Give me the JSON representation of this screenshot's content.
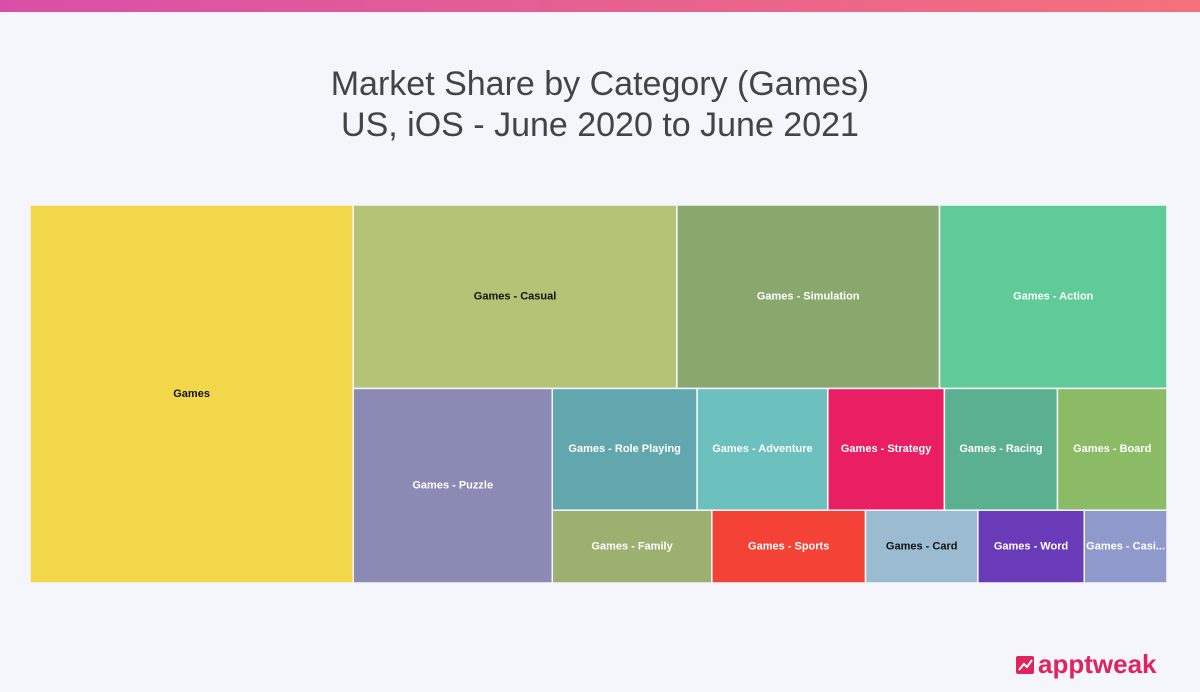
{
  "chart_data": {
    "type": "treemap",
    "title": "Market Share by Category (Games)",
    "subtitle": "US, iOS - June 2020 to June 2021",
    "categories": [
      "Games",
      "Games - Casual",
      "Games - Simulation",
      "Games - Action",
      "Games - Puzzle",
      "Games - Role Playing",
      "Games - Adventure",
      "Games - Strategy",
      "Games - Racing",
      "Games - Board",
      "Games - Family",
      "Games - Sports",
      "Games - Card",
      "Games - Word",
      "Games - Casi..."
    ],
    "values": [
      28.4,
      13.8,
      11.2,
      9.7,
      9.0,
      4.1,
      3.7,
      3.3,
      3.2,
      3.1,
      2.7,
      2.6,
      1.9,
      1.8,
      1.4
    ],
    "colors": [
      "#f2d74b",
      "#b5c377",
      "#89a86e",
      "#5fcb98",
      "#8b8ab5",
      "#62a7ae",
      "#6cc1bf",
      "#e91e63",
      "#5bb08f",
      "#8bbb64",
      "#9db070",
      "#f44336",
      "#9bbcd0",
      "#6a3bb8",
      "#8f99cc"
    ],
    "label_colors": [
      "#111111",
      "#111111",
      "#ffffff",
      "#ffffff",
      "#ffffff",
      "#ffffff",
      "#ffffff",
      "#ffffff",
      "#ffffff",
      "#ffffff",
      "#ffffff",
      "#ffffff",
      "#111111",
      "#ffffff",
      "#ffffff"
    ]
  },
  "brand": "apptweak"
}
